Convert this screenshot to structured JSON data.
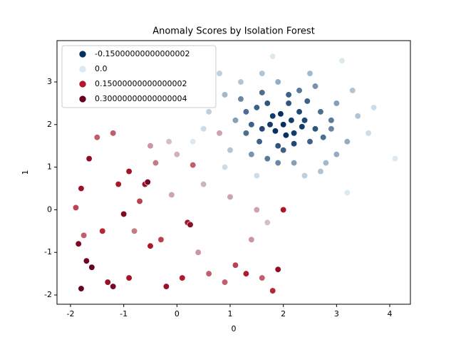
{
  "chart_data": {
    "type": "scatter",
    "title": "Anomaly Scores by Isolation Forest",
    "x_label": "0",
    "y_label": "1",
    "xlim": [
      -2.254,
      4.388
    ],
    "ylim": [
      -2.217,
      3.97
    ],
    "xticks": [
      -2,
      -1,
      0,
      1,
      2,
      3,
      4
    ],
    "yticks": [
      -2,
      -1,
      0,
      1,
      2,
      3
    ],
    "legend_position": "upper left",
    "legend": [
      {
        "name": "-0.15000000000000002",
        "color": "#053061"
      },
      {
        "name": "0.0",
        "color": "#dbe9f1"
      },
      {
        "name": "0.15000000000000002",
        "color": "#b2182b"
      },
      {
        "name": "0.30000000000000004",
        "color": "#67001f"
      }
    ],
    "x": [
      2.0,
      1.8,
      2.2,
      1.6,
      2.4,
      2.1,
      1.9,
      2.5,
      1.5,
      2.7,
      1.3,
      2.3,
      1.7,
      2.9,
      1.2,
      2.6,
      1.4,
      3.0,
      1.1,
      2.2,
      1.9,
      3.2,
      0.9,
      2.8,
      1.6,
      3.4,
      1.0,
      2.4,
      0.8,
      3.6,
      1.8,
      4.1,
      3.1,
      0.3,
      3.2,
      2.05,
      1.95,
      2.15,
      1.85,
      2.3,
      1.7,
      2.6,
      1.4,
      2.0,
      2.45,
      1.55,
      2.75,
      1.6,
      2.2,
      1.75,
      2.35,
      2.1,
      1.3,
      2.9,
      1.9,
      0.6,
      0.5,
      3.3,
      2.5,
      1.2,
      0.9,
      3.0,
      2.7,
      1.5,
      3.7,
      -1.9,
      -1.85,
      -1.8,
      -1.7,
      -1.6,
      -1.5,
      -1.65,
      -1.3,
      -1.2,
      -1.1,
      -1.0,
      -0.9,
      -0.8,
      -0.7,
      -0.6,
      -0.5,
      -0.4,
      -0.3,
      -0.2,
      -0.1,
      0.0,
      0.1,
      0.2,
      0.3,
      0.4,
      0.5,
      0.6,
      0.8,
      0.9,
      1.0,
      1.1,
      1.3,
      1.4,
      1.5,
      1.6,
      1.7,
      1.8,
      1.9,
      2.0,
      -1.2,
      -0.9,
      -1.4,
      -0.5,
      -1.8,
      -0.15,
      0.25,
      -0.55,
      -1.75
    ],
    "y": [
      2.0,
      2.2,
      1.8,
      1.9,
      2.1,
      2.5,
      1.5,
      1.6,
      2.4,
      2.3,
      1.8,
      2.8,
      1.2,
      1.9,
      2.6,
      2.9,
      1.3,
      2.5,
      2.1,
      1.1,
      3.0,
      1.6,
      2.7,
      1.1,
      3.2,
      2.2,
      1.4,
      0.8,
      3.2,
      1.8,
      3.6,
      1.2,
      3.5,
      1.6,
      0.4,
      1.75,
      2.25,
      2.1,
      1.85,
      2.3,
      2.5,
      1.9,
      2.0,
      1.4,
      2.55,
      1.6,
      1.7,
      2.75,
      1.55,
      2.0,
      1.95,
      2.7,
      2.3,
      2.1,
      1.1,
      2.3,
      1.9,
      2.8,
      3.2,
      3.0,
      1.0,
      1.3,
      0.9,
      0.8,
      2.4,
      0.05,
      -0.8,
      -1.85,
      -1.2,
      -1.35,
      1.7,
      1.2,
      -1.7,
      -1.8,
      0.6,
      -0.1,
      0.9,
      -0.5,
      0.2,
      0.6,
      -0.85,
      1.1,
      -0.7,
      -1.8,
      0.35,
      1.3,
      -1.6,
      -0.3,
      1.05,
      -1.0,
      0.6,
      -1.5,
      1.8,
      -1.7,
      0.3,
      -1.3,
      -1.5,
      -0.7,
      0.0,
      -1.6,
      -0.3,
      -1.9,
      -1.4,
      0.0,
      1.8,
      -1.6,
      -0.5,
      1.5,
      0.5,
      1.6,
      -0.35,
      0.65,
      -0.6
    ],
    "values": [
      -0.15,
      -0.14,
      -0.14,
      -0.13,
      -0.13,
      -0.12,
      -0.12,
      -0.11,
      -0.11,
      -0.1,
      -0.1,
      -0.09,
      -0.09,
      -0.08,
      -0.08,
      -0.07,
      -0.07,
      -0.06,
      -0.06,
      -0.06,
      -0.05,
      -0.05,
      -0.04,
      -0.04,
      -0.03,
      -0.03,
      -0.03,
      -0.02,
      -0.02,
      -0.01,
      0.0,
      0.0,
      0.0,
      0.0,
      0.0,
      -0.15,
      -0.15,
      -0.14,
      -0.15,
      -0.13,
      -0.12,
      -0.12,
      -0.11,
      -0.11,
      -0.11,
      -0.11,
      -0.1,
      -0.1,
      -0.13,
      -0.14,
      -0.14,
      -0.11,
      -0.1,
      -0.09,
      -0.08,
      -0.02,
      -0.01,
      -0.03,
      -0.04,
      -0.03,
      -0.01,
      -0.05,
      -0.03,
      -0.01,
      -0.01,
      0.12,
      0.25,
      0.3,
      0.28,
      0.3,
      0.1,
      0.22,
      0.2,
      0.26,
      0.16,
      0.25,
      0.18,
      0.08,
      0.12,
      0.2,
      0.16,
      0.08,
      0.12,
      0.2,
      0.05,
      0.04,
      0.15,
      0.18,
      0.1,
      0.06,
      0.04,
      0.1,
      0.05,
      0.1,
      0.05,
      0.12,
      0.15,
      0.06,
      0.05,
      0.1,
      0.03,
      0.14,
      0.22,
      0.16,
      0.1,
      0.18,
      0.14,
      0.06,
      0.2,
      0.03,
      0.22,
      0.26,
      0.1
    ]
  }
}
